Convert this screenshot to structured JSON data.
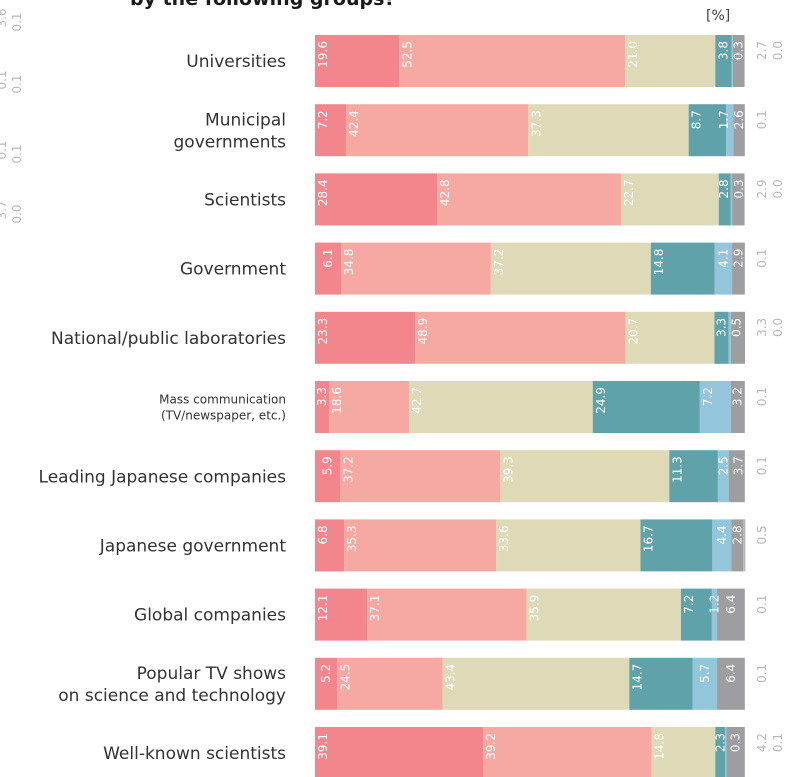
{
  "chart_data": {
    "type": "bar",
    "orientation": "horizontal",
    "stacked": true,
    "title": "by the following groups?",
    "unit_label": "[%]",
    "xlim": [
      0,
      100
    ],
    "categories": [
      "Universities",
      "Municipal\ngovernments",
      "Scientists",
      "Government",
      "National/public laboratories",
      "Mass communication\n(TV/newspaper, etc.)",
      "Leading Japanese companies",
      "Japanese government",
      "Global companies",
      "Popular TV shows\non science and technology",
      "Well-known scientists"
    ],
    "small_label_categories": [
      5
    ],
    "series": [
      {
        "color": "#f2868c",
        "values": [
          19.6,
          7.2,
          28.4,
          6.1,
          23.3,
          3.3,
          5.9,
          6.8,
          12.1,
          5.2,
          39.1
        ]
      },
      {
        "color": "#f6a9a3",
        "values": [
          52.5,
          42.4,
          42.8,
          34.8,
          48.9,
          18.6,
          37.2,
          35.3,
          37.1,
          24.5,
          39.2
        ]
      },
      {
        "color": "#dedab7",
        "values": [
          21.0,
          37.3,
          22.7,
          37.2,
          20.7,
          42.7,
          39.3,
          33.6,
          35.9,
          43.4,
          14.8
        ]
      },
      {
        "color": "#60a2aa",
        "values": [
          3.8,
          8.7,
          2.8,
          14.8,
          3.3,
          24.9,
          11.3,
          16.7,
          7.2,
          14.7,
          2.3
        ]
      },
      {
        "color": "#93c6da",
        "values": [
          0.3,
          1.7,
          0.3,
          4.1,
          0.5,
          7.2,
          2.5,
          4.4,
          1.2,
          5.7,
          0.3
        ]
      },
      {
        "color": "#9e9ea0",
        "values": [
          2.7,
          2.6,
          2.9,
          2.9,
          3.3,
          3.2,
          3.7,
          2.8,
          6.4,
          6.4,
          4.2
        ]
      },
      {
        "color": "#b8b8b8",
        "values": [
          0.0,
          0.1,
          0.0,
          0.1,
          0.0,
          0.1,
          0.1,
          0.5,
          0.1,
          0.1,
          0.1
        ]
      }
    ],
    "bar_labels": [
      {
        "inside": [
          "19.6",
          "52.5",
          "21.0",
          "3.8",
          "0.3"
        ],
        "outside": [
          "2.7",
          "0.0"
        ]
      },
      {
        "inside": [
          "7.2",
          "42.4",
          "37.3",
          "8.7",
          "1.7",
          "2.6"
        ],
        "outside": [
          "0.1"
        ]
      },
      {
        "inside": [
          "28.4",
          "42.8",
          "22.7",
          "2.8",
          "0.3"
        ],
        "outside": [
          "2.9",
          "0.0"
        ]
      },
      {
        "inside": [
          "6.1",
          "34.8",
          "37.2",
          "14.8",
          "4.1",
          "2.9"
        ],
        "outside": [
          "0.1"
        ]
      },
      {
        "inside": [
          "23.3",
          "48.9",
          "20.7",
          "3.3",
          "0.5"
        ],
        "outside": [
          "3.3",
          "0.0"
        ]
      },
      {
        "inside": [
          "3.3",
          "18.6",
          "42.7",
          "24.9",
          "7.2",
          "3.2"
        ],
        "outside": [
          "0.1"
        ]
      },
      {
        "inside": [
          "5.9",
          "37.2",
          "39.3",
          "11.3",
          "2.5",
          "3.7"
        ],
        "outside": [
          "0.1"
        ]
      },
      {
        "inside": [
          "6.8",
          "35.3",
          "33.6",
          "16.7",
          "4.4",
          "2.8"
        ],
        "outside": [
          "0.5"
        ]
      },
      {
        "inside": [
          "12.1",
          "37.1",
          "35.9",
          "7.2",
          "1.2",
          "6.4"
        ],
        "outside": [
          "0.1"
        ]
      },
      {
        "inside": [
          "5.2",
          "24.5",
          "43.4",
          "14.7",
          "5.7",
          "6.4"
        ],
        "outside": [
          "0.1"
        ]
      },
      {
        "inside": [
          "39.1",
          "39.2",
          "14.8",
          "2.3",
          "0.3"
        ],
        "outside": [
          "4.2",
          "0.1"
        ]
      }
    ],
    "cropped_left_labels": [
      "3.6",
      "0.1",
      "0.1",
      "0.1",
      "0.1",
      "0.1",
      "3.7",
      "0.0"
    ]
  }
}
